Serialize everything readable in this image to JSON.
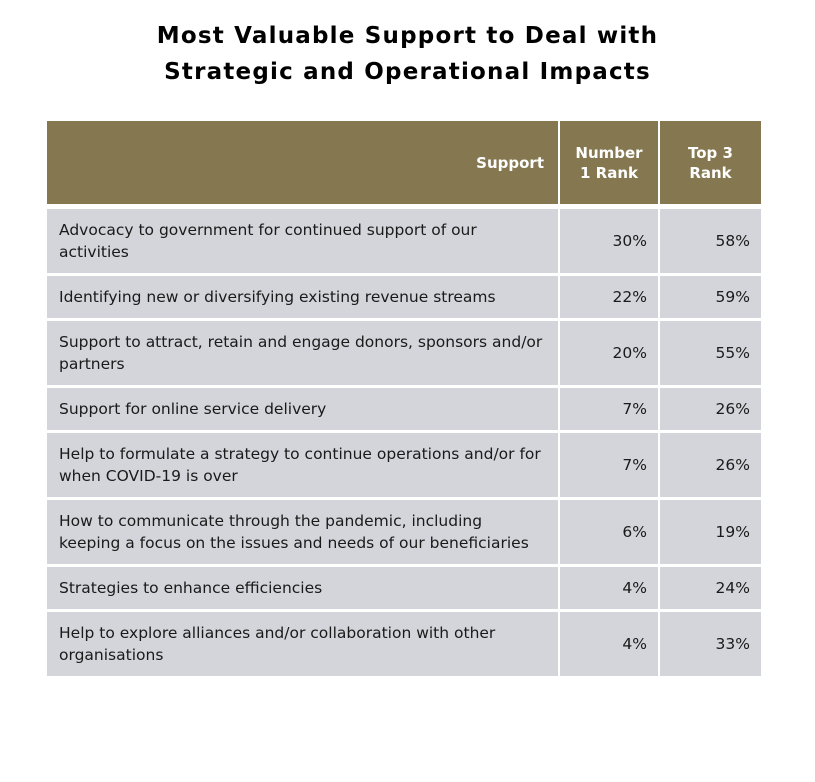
{
  "title_lines": [
    "Most Valuable Support to Deal with",
    "Strategic and Operational Impacts"
  ],
  "headers": {
    "support": "Support",
    "number1": "Number 1 Rank",
    "top3": "Top 3 Rank"
  },
  "rows": [
    {
      "support": "Advocacy to government for continued support of our activities",
      "number1": "30%",
      "top3": "58%"
    },
    {
      "support": "Identifying new or diversifying existing revenue streams",
      "number1": "22%",
      "top3": "59%"
    },
    {
      "support": "Support to attract, retain and engage donors, sponsors and/or partners",
      "number1": "20%",
      "top3": "55%"
    },
    {
      "support": "Support for online service delivery",
      "number1": "7%",
      "top3": "26%"
    },
    {
      "support": "Help to formulate a strategy to continue operations and/or for when COVID-19 is over",
      "number1": "7%",
      "top3": "26%"
    },
    {
      "support": "How to communicate through the pandemic, including keeping a focus on the issues and needs of our beneficiaries",
      "number1": "6%",
      "top3": "19%"
    },
    {
      "support": "Strategies to enhance efficiencies",
      "number1": "4%",
      "top3": "24%"
    },
    {
      "support": "Help to explore alliances and/or collaboration with other organisations",
      "number1": "4%",
      "top3": "33%"
    }
  ],
  "chart_data": {
    "type": "table",
    "title": "Most Valuable Support to Deal with Strategic and Operational Impacts",
    "columns": [
      "Support",
      "Number 1 Rank",
      "Top 3 Rank"
    ],
    "rows": [
      [
        "Advocacy to government for continued support of our activities",
        "30%",
        "58%"
      ],
      [
        "Identifying new or diversifying existing revenue streams",
        "22%",
        "59%"
      ],
      [
        "Support to attract, retain and engage donors, sponsors and/or partners",
        "20%",
        "55%"
      ],
      [
        "Support for online service delivery",
        "7%",
        "26%"
      ],
      [
        "Help to formulate a strategy to continue operations and/or for when COVID-19 is over",
        "7%",
        "26%"
      ],
      [
        "How to communicate through the pandemic, including keeping a focus on the issues and needs of our beneficiaries",
        "6%",
        "19%"
      ],
      [
        "Strategies to enhance efficiencies",
        "4%",
        "24%"
      ],
      [
        "Help to explore alliances and/or collaboration with other organisations",
        "4%",
        "33%"
      ]
    ]
  },
  "colors": {
    "header_background": "#857750",
    "header_text": "#ffffff",
    "row_background": "#d4d5da",
    "separator": "#ffffff"
  }
}
